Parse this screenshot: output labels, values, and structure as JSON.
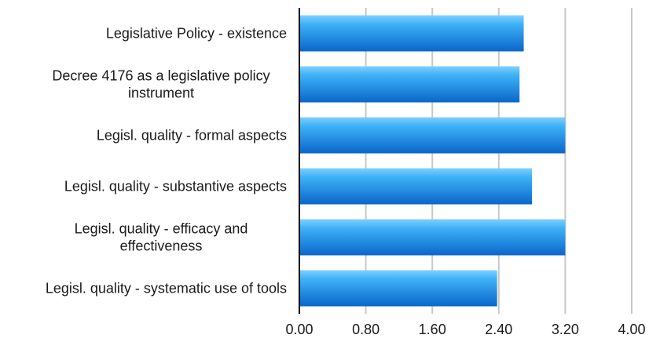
{
  "chart_data": {
    "type": "bar",
    "orientation": "horizontal",
    "categories": [
      [
        "Legislative Policy - existence"
      ],
      [
        "Decree 4176 as a legislative policy",
        "instrument"
      ],
      [
        "Legisl. quality - formal aspects"
      ],
      [
        "Legisl. quality - substantive aspects"
      ],
      [
        "Legisl. quality - efficacy and",
        "effectiveness"
      ],
      [
        "Legisl. quality - systematic use of tools"
      ]
    ],
    "values": [
      2.7,
      2.65,
      3.2,
      2.8,
      3.2,
      2.38
    ],
    "xlim": [
      0,
      4
    ],
    "ticks": [
      "0.00",
      "0.80",
      "1.60",
      "2.40",
      "3.20",
      "4.00"
    ],
    "tick_values": [
      0,
      0.8,
      1.6,
      2.4,
      3.2,
      4.0
    ],
    "grid": "vertical",
    "bar_color_light": "#3db1f7",
    "bar_color_dark": "#0a66c9",
    "grid_color": "#c8c8c8",
    "axis_color": "#000000"
  }
}
